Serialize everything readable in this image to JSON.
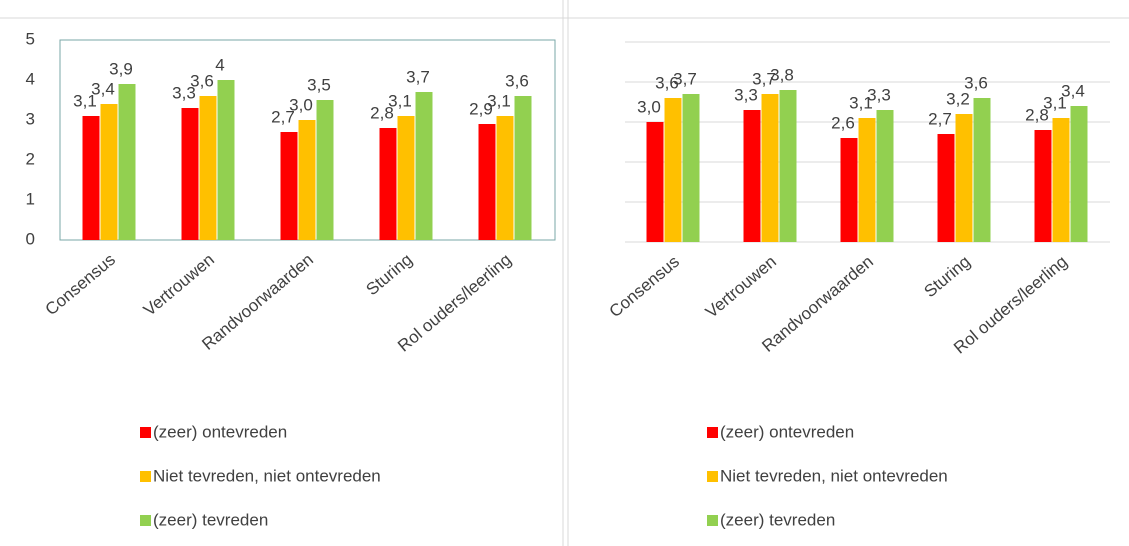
{
  "chart_data": [
    {
      "type": "bar",
      "categories": [
        "Consensus",
        "Vertrouwen",
        "Randvoorwaarden",
        "Sturing",
        "Rol ouders/leerling"
      ],
      "series": [
        {
          "name": "(zeer) ontevreden",
          "color": "#ff0000",
          "values": [
            3.1,
            3.3,
            2.7,
            2.8,
            2.9
          ],
          "value_labels": [
            "3,1",
            "3,3",
            "2,7",
            "2,8",
            "2,9"
          ]
        },
        {
          "name": "Niet tevreden, niet ontevreden",
          "color": "#ffc000",
          "values": [
            3.4,
            3.6,
            3.0,
            3.1,
            3.1
          ],
          "value_labels": [
            "3,4",
            "3,6",
            "3,0",
            "3,1",
            "3,1"
          ]
        },
        {
          "name": "(zeer) tevreden",
          "color": "#92d050",
          "values": [
            3.9,
            4,
            3.5,
            3.7,
            3.6
          ],
          "value_labels": [
            "3,9",
            "4",
            "3,5",
            "3,7",
            "3,6"
          ]
        }
      ],
      "ylim": [
        0,
        5
      ],
      "yticks": [
        0,
        1,
        2,
        3,
        4,
        5
      ],
      "show_ytick_labels": true,
      "grid": false,
      "plot_border": true
    },
    {
      "type": "bar",
      "categories": [
        "Consensus",
        "Vertrouwen",
        "Randvoorwaarden",
        "Sturing",
        "Rol ouders/leerling"
      ],
      "series": [
        {
          "name": "(zeer) ontevreden",
          "color": "#ff0000",
          "values": [
            3.0,
            3.3,
            2.6,
            2.7,
            2.8
          ],
          "value_labels": [
            "3,0",
            "3,3",
            "2,6",
            "2,7",
            "2,8"
          ]
        },
        {
          "name": "Niet tevreden, niet ontevreden",
          "color": "#ffc000",
          "values": [
            3.6,
            3.7,
            3.1,
            3.2,
            3.1
          ],
          "value_labels": [
            "3,6",
            "3,7",
            "3,1",
            "3,2",
            "3,1"
          ]
        },
        {
          "name": "(zeer) tevreden",
          "color": "#92d050",
          "values": [
            3.7,
            3.8,
            3.3,
            3.6,
            3.4
          ],
          "value_labels": [
            "3,7",
            "3,8",
            "3,3",
            "3,6",
            "3,4"
          ]
        }
      ],
      "ylim": [
        0,
        5
      ],
      "yticks": [
        0,
        1,
        2,
        3,
        4,
        5
      ],
      "show_ytick_labels": false,
      "grid": true,
      "plot_border": false
    }
  ]
}
